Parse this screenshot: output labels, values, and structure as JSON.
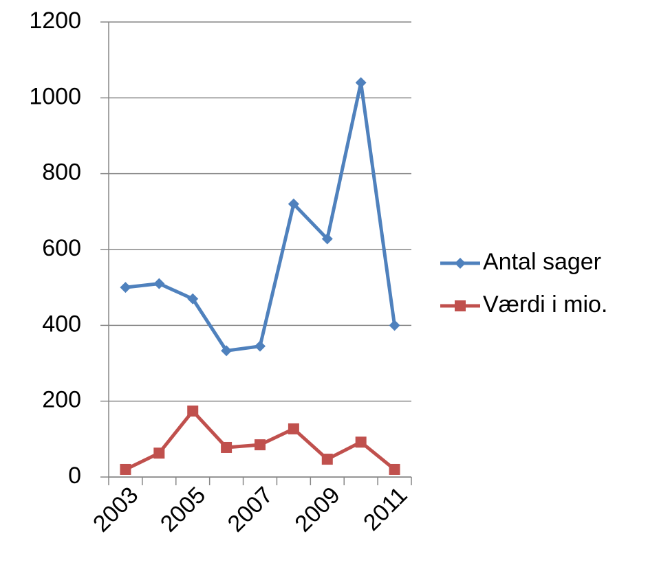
{
  "chart_data": {
    "type": "line",
    "categories": [
      "2003",
      null,
      "2005",
      null,
      "2007",
      null,
      "2009",
      null,
      "2011"
    ],
    "series": [
      {
        "name": "Antal sager",
        "color": "#4f81bd",
        "marker": "diamond",
        "values": [
          500,
          510,
          470,
          333,
          345,
          720,
          628,
          1040,
          400
        ]
      },
      {
        "name": "Værdi i mio.",
        "color": "#c0504d",
        "marker": "square",
        "values": [
          20,
          63,
          174,
          78,
          85,
          127,
          47,
          92,
          20
        ]
      }
    ],
    "ylim": [
      0,
      1200
    ],
    "yticks": [
      0,
      200,
      400,
      600,
      800,
      1000,
      1200
    ],
    "grid": true,
    "legend": "right"
  }
}
